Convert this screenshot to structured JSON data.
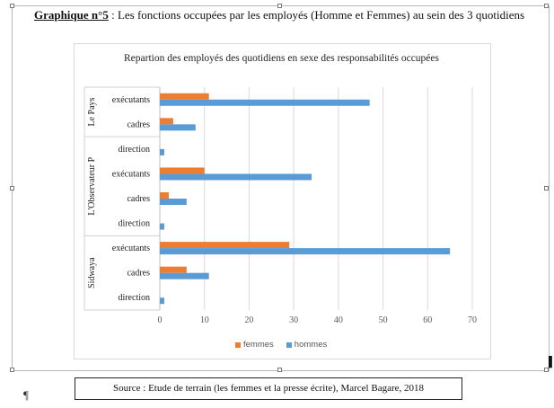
{
  "heading": {
    "label": "Graphique n°5",
    "text": " : Les fonctions occupées par les employés (Homme et Femmes) au sein des 3 quotidiens"
  },
  "colors": {
    "femmes": "#ed7d31",
    "hommes": "#5b9bd5",
    "grid": "#d9d9d9"
  },
  "chart_data": {
    "type": "bar",
    "orientation": "horizontal",
    "title": "Repartion des employés des quotidiens en sexe des responsabilités occupées",
    "xlim": [
      0,
      70
    ],
    "xticks": [
      0,
      10,
      20,
      30,
      40,
      50,
      60,
      70
    ],
    "grid": true,
    "legend_position": "bottom",
    "groups": [
      {
        "name": "Le Pays",
        "categories": [
          "exécutants",
          "cadres"
        ]
      },
      {
        "name": "L'Observateur P",
        "categories": [
          "direction",
          "exécutants",
          "cadres",
          "direction"
        ]
      },
      {
        "name": "Sidwaya",
        "categories": [
          "exécutants",
          "cadres",
          "direction"
        ]
      }
    ],
    "series": [
      {
        "name": "femmes",
        "values": [
          11,
          3,
          0,
          10,
          2,
          0,
          29,
          6,
          0
        ]
      },
      {
        "name": "hommes",
        "values": [
          47,
          8,
          1,
          34,
          6,
          1,
          65,
          11,
          1
        ]
      }
    ]
  },
  "source": "Source : Etude de terrain (les femmes et la presse écrite), Marcel Bagare, 2018",
  "pilcrow": "¶",
  "corner_mark": "▐"
}
